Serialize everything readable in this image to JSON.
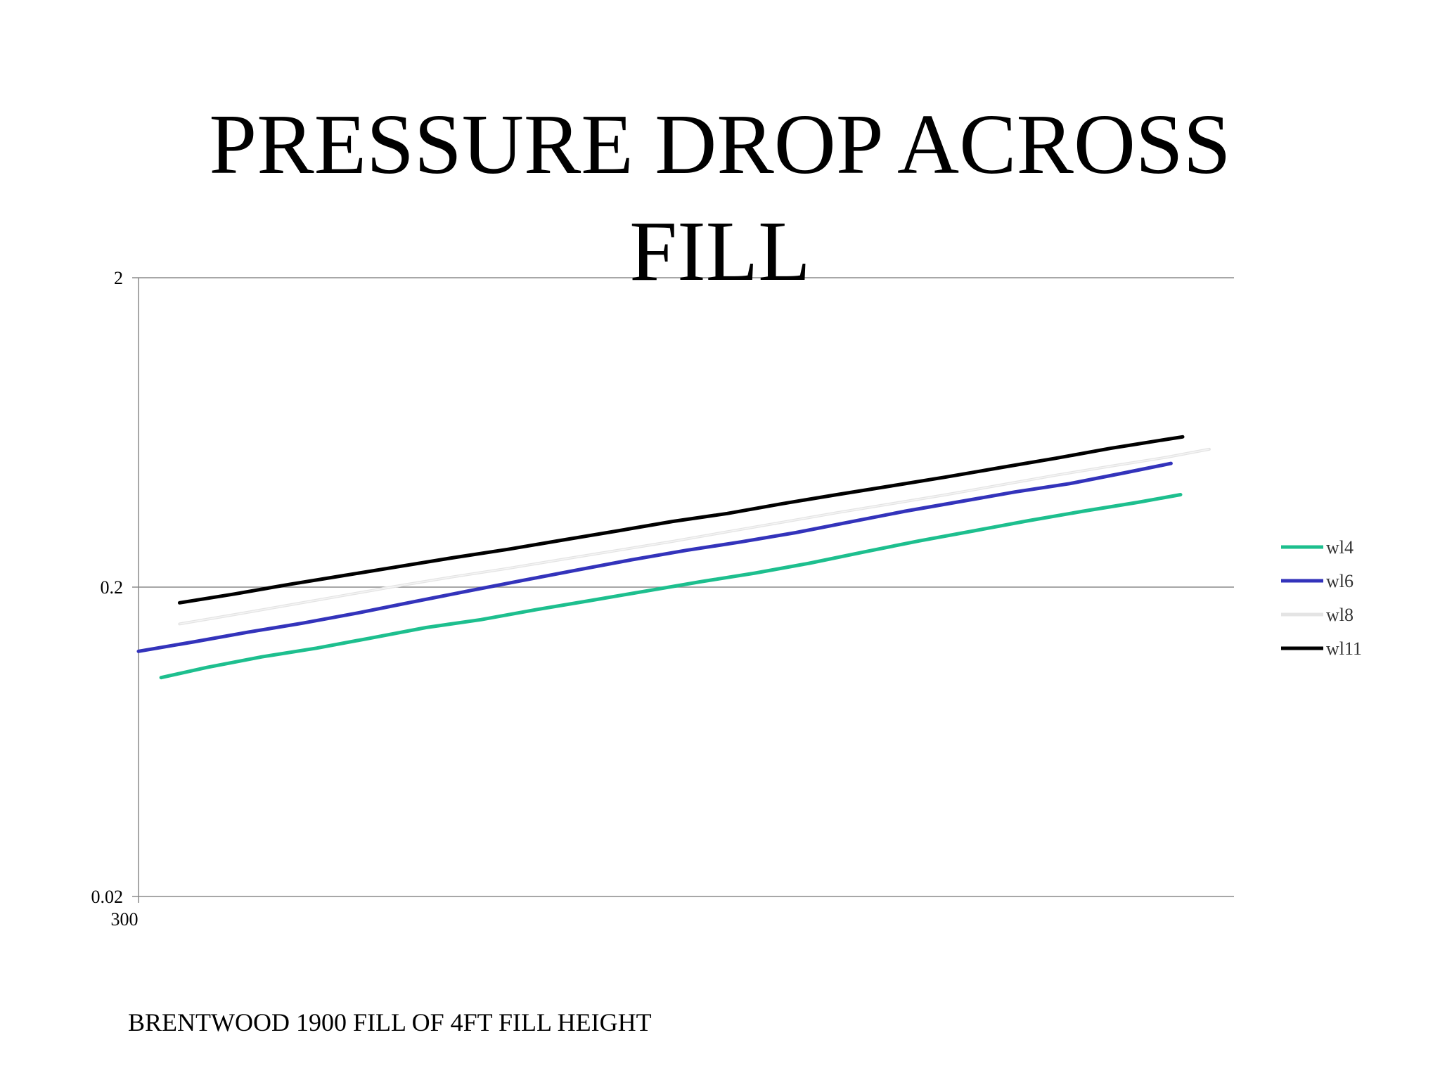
{
  "slide": {
    "title_line1": "PRESSURE DROP ACROSS",
    "title_line2": "FILL",
    "caption": "BRENTWOOD 1900 FILL OF 4FT FILL HEIGHT"
  },
  "chart_data": {
    "type": "line",
    "title": "",
    "xlabel": "",
    "ylabel": "",
    "y_scale": "log",
    "ylim": [
      0.02,
      2
    ],
    "y_ticks": [
      {
        "value": 2,
        "label": "2"
      },
      {
        "value": 0.2,
        "label": "0.2"
      },
      {
        "value": 0.02,
        "label": "0.02"
      }
    ],
    "x_ticks": [
      {
        "value": 300,
        "label": "300"
      }
    ],
    "xlim": [
      300,
      1900
    ],
    "grid": "horizontal at major y ticks",
    "legend_position": "right",
    "series": [
      {
        "name": "wl4",
        "color": "#1DBF8E",
        "x": [
          333,
          400,
          480,
          560,
          640,
          720,
          800,
          880,
          960,
          1040,
          1120,
          1200,
          1280,
          1360,
          1440,
          1520,
          1600,
          1680,
          1760,
          1822
        ],
        "y": [
          0.102,
          0.11,
          0.119,
          0.127,
          0.137,
          0.148,
          0.157,
          0.169,
          0.181,
          0.194,
          0.208,
          0.222,
          0.239,
          0.26,
          0.282,
          0.304,
          0.328,
          0.352,
          0.376,
          0.398
        ]
      },
      {
        "name": "wl6",
        "color": "#3333BB",
        "x": [
          300,
          380,
          460,
          540,
          620,
          700,
          780,
          860,
          940,
          1020,
          1100,
          1180,
          1260,
          1340,
          1420,
          1500,
          1580,
          1660,
          1740,
          1808
        ],
        "y": [
          0.124,
          0.133,
          0.143,
          0.153,
          0.165,
          0.179,
          0.194,
          0.21,
          0.227,
          0.245,
          0.263,
          0.28,
          0.3,
          0.325,
          0.352,
          0.378,
          0.406,
          0.432,
          0.468,
          0.502
        ]
      },
      {
        "name": "wl8",
        "color": "#E4E4E4",
        "x": [
          360,
          440,
          520,
          600,
          680,
          760,
          840,
          920,
          1000,
          1080,
          1160,
          1240,
          1320,
          1400,
          1480,
          1560,
          1640,
          1720,
          1800,
          1864
        ],
        "y": [
          0.152,
          0.163,
          0.175,
          0.188,
          0.202,
          0.216,
          0.23,
          0.246,
          0.263,
          0.281,
          0.302,
          0.324,
          0.348,
          0.372,
          0.398,
          0.428,
          0.46,
          0.492,
          0.525,
          0.558
        ]
      },
      {
        "name": "wl11",
        "color": "#000000",
        "x": [
          360,
          440,
          520,
          600,
          680,
          760,
          840,
          920,
          1000,
          1080,
          1160,
          1240,
          1320,
          1400,
          1480,
          1560,
          1640,
          1720,
          1800,
          1825
        ],
        "y": [
          0.178,
          0.19,
          0.204,
          0.218,
          0.233,
          0.249,
          0.265,
          0.284,
          0.304,
          0.326,
          0.346,
          0.372,
          0.398,
          0.425,
          0.454,
          0.487,
          0.522,
          0.562,
          0.6,
          0.612
        ]
      }
    ]
  }
}
